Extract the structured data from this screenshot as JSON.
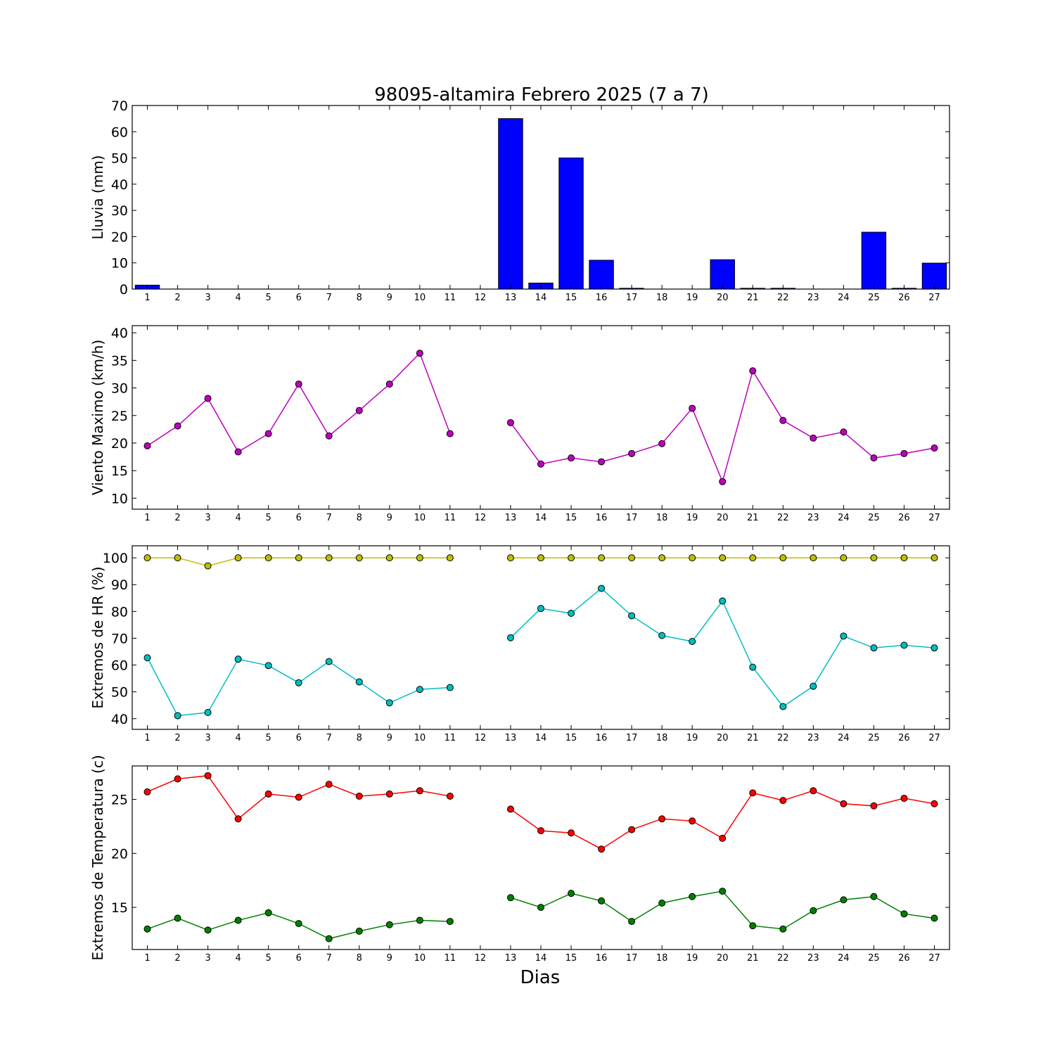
{
  "title": "98095-altamira Febrero 2025  (7 a 7)",
  "xlabel": "Dias",
  "chart_data": [
    {
      "type": "bar",
      "ylabel": "Lluvia (mm)",
      "ylim": [
        0,
        70
      ],
      "yticks": [
        0,
        10,
        20,
        30,
        40,
        50,
        60,
        70
      ],
      "x": [
        1,
        2,
        3,
        4,
        5,
        6,
        7,
        8,
        9,
        10,
        11,
        12,
        13,
        14,
        15,
        16,
        17,
        18,
        19,
        20,
        21,
        22,
        23,
        24,
        25,
        26,
        27
      ],
      "series": [
        {
          "color": "#0000ff",
          "values": [
            1.5,
            0,
            0,
            0,
            0,
            0,
            0,
            0,
            0,
            0,
            0,
            null,
            65,
            2.3,
            50,
            11,
            0.3,
            0,
            0,
            11.2,
            0.3,
            0.3,
            0,
            0,
            21.7,
            0.3,
            9.9
          ]
        }
      ],
      "grid": false
    },
    {
      "type": "line",
      "ylabel": "Viento Maximo (km/h)",
      "ylim": [
        8,
        41.3
      ],
      "yticks": [
        10,
        15,
        20,
        25,
        30,
        35,
        40
      ],
      "x": [
        1,
        2,
        3,
        4,
        5,
        6,
        7,
        8,
        9,
        10,
        11,
        12,
        13,
        14,
        15,
        16,
        17,
        18,
        19,
        20,
        21,
        22,
        23,
        24,
        25,
        26,
        27
      ],
      "series": [
        {
          "color": "#bf00bf",
          "values": [
            19.5,
            23.1,
            28.1,
            18.4,
            21.7,
            30.7,
            21.3,
            25.9,
            30.7,
            36.3,
            21.7,
            null,
            23.7,
            16.2,
            17.3,
            16.6,
            18.1,
            19.9,
            26.3,
            13,
            33.1,
            24.1,
            20.9,
            22,
            17.3,
            18.1,
            19.1
          ]
        }
      ],
      "grid": false
    },
    {
      "type": "line",
      "ylabel": "Extremos de HR (%)",
      "ylim": [
        36,
        104.5
      ],
      "yticks": [
        40,
        50,
        60,
        70,
        80,
        90,
        100
      ],
      "x": [
        1,
        2,
        3,
        4,
        5,
        6,
        7,
        8,
        9,
        10,
        11,
        12,
        13,
        14,
        15,
        16,
        17,
        18,
        19,
        20,
        21,
        22,
        23,
        24,
        25,
        26,
        27
      ],
      "series": [
        {
          "color": "#bfbf00",
          "values": [
            100,
            100,
            97,
            100,
            100,
            100,
            100,
            100,
            100,
            100,
            100,
            null,
            100,
            100,
            100,
            100,
            100,
            100,
            100,
            100,
            100,
            100,
            100,
            100,
            100,
            100,
            100
          ]
        },
        {
          "color": "#00bfbf",
          "values": [
            62.7,
            41.1,
            42.3,
            62.2,
            59.8,
            53.4,
            61.3,
            53.7,
            45.9,
            50.9,
            51.6,
            null,
            70.2,
            81.1,
            79.3,
            88.6,
            78.4,
            71,
            68.8,
            83.9,
            59.2,
            44.5,
            52.1,
            70.8,
            66.4,
            67.4,
            66.4
          ]
        }
      ],
      "grid": false
    },
    {
      "type": "line",
      "ylabel": "Extremos de Temperatura (c)",
      "ylim": [
        11.1,
        28.1
      ],
      "yticks": [
        15,
        20,
        25
      ],
      "x": [
        1,
        2,
        3,
        4,
        5,
        6,
        7,
        8,
        9,
        10,
        11,
        12,
        13,
        14,
        15,
        16,
        17,
        18,
        19,
        20,
        21,
        22,
        23,
        24,
        25,
        26,
        27
      ],
      "series": [
        {
          "color": "#ff0000",
          "values": [
            25.7,
            26.9,
            27.2,
            23.2,
            25.5,
            25.2,
            26.4,
            25.3,
            25.5,
            25.8,
            25.3,
            null,
            24.1,
            22.1,
            21.9,
            20.4,
            22.2,
            23.2,
            23,
            21.4,
            25.6,
            24.9,
            25.8,
            24.6,
            24.4,
            25.1,
            24.6
          ]
        },
        {
          "color": "#008000",
          "values": [
            13,
            14,
            12.9,
            13.8,
            14.5,
            13.5,
            12.1,
            12.8,
            13.4,
            13.8,
            13.7,
            null,
            15.9,
            15,
            16.3,
            15.6,
            13.7,
            15.4,
            16,
            16.5,
            13.3,
            13,
            14.7,
            15.7,
            16,
            14.4,
            14
          ]
        }
      ],
      "grid": false
    }
  ]
}
